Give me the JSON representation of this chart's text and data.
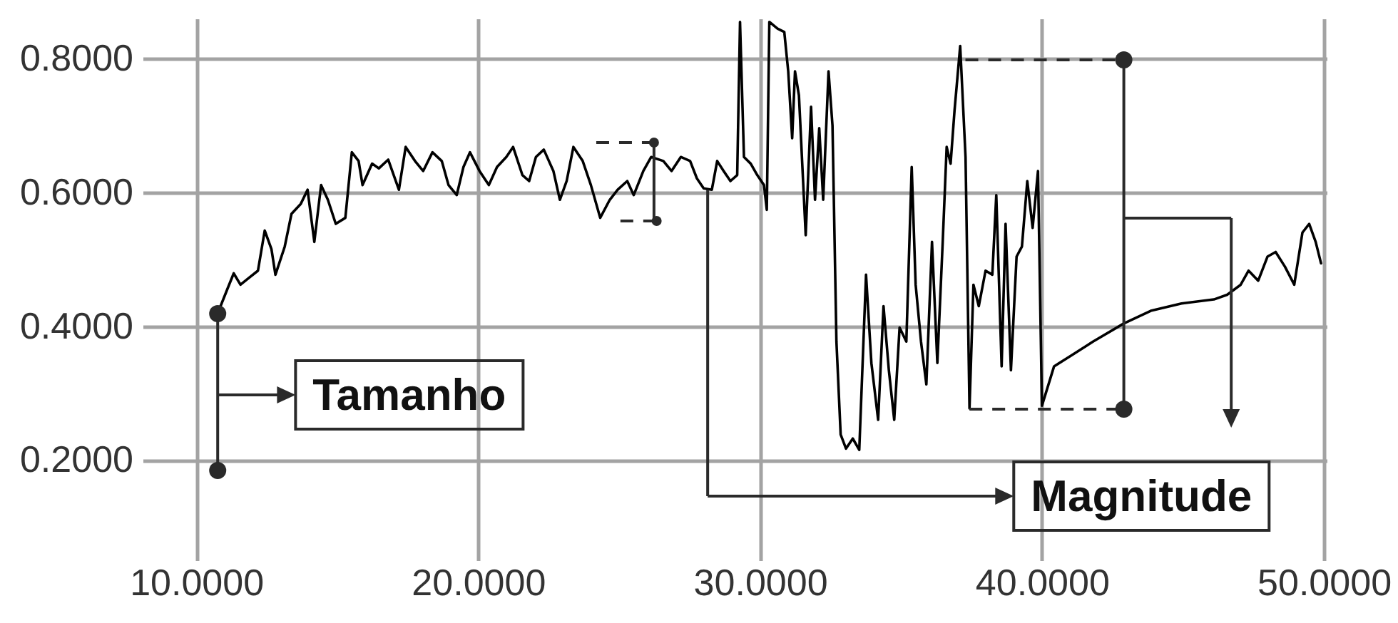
{
  "chart_data": {
    "type": "line",
    "x": [
      10.76,
      11.1,
      11.33,
      11.57,
      11.86,
      12.19,
      12.43,
      12.67,
      12.81,
      13.14,
      13.38,
      13.71,
      13.95,
      14.19,
      14.43,
      14.67,
      14.95,
      15.29,
      15.52,
      15.76,
      15.9,
      16.24,
      16.48,
      16.81,
      17.19,
      17.43,
      17.76,
      18.05,
      18.38,
      18.71,
      18.95,
      19.24,
      19.48,
      19.71,
      20.05,
      20.38,
      20.67,
      21.0,
      21.24,
      21.57,
      21.81,
      22.05,
      22.33,
      22.67,
      22.9,
      23.14,
      23.38,
      23.71,
      24.0,
      24.33,
      24.67,
      24.95,
      25.29,
      25.52,
      25.86,
      26.14,
      26.57,
      26.86,
      27.19,
      27.52,
      27.76,
      28.0,
      28.29,
      28.48,
      28.71,
      28.95,
      29.19,
      29.29,
      29.43,
      29.67,
      29.9,
      30.14,
      30.24,
      30.33,
      30.62,
      30.86,
      31.0,
      31.14,
      31.24,
      31.38,
      31.62,
      31.81,
      31.95,
      32.1,
      32.24,
      32.43,
      32.57,
      32.71,
      32.86,
      33.05,
      33.29,
      33.52,
      33.76,
      33.95,
      34.19,
      34.38,
      34.57,
      34.76,
      34.95,
      35.19,
      35.38,
      35.52,
      35.71,
      35.9,
      36.1,
      36.29,
      36.48,
      36.62,
      36.76,
      36.9,
      37.1,
      37.29,
      37.43,
      37.57,
      37.76,
      38.0,
      38.24,
      38.38,
      38.57,
      38.71,
      38.9,
      39.1,
      39.29,
      39.48,
      39.67,
      39.86,
      40.0,
      40.43,
      41.0,
      41.81,
      42.9,
      43.86,
      44.95,
      46.1,
      46.57,
      47.05,
      47.33,
      47.67,
      48.0,
      48.29,
      48.62,
      48.95,
      49.24,
      49.48,
      49.71,
      49.9
    ],
    "series": [
      {
        "color": "#000000",
        "values": [
          0.419,
          0.455,
          0.479,
          0.462,
          0.472,
          0.483,
          0.543,
          0.515,
          0.477,
          0.519,
          0.568,
          0.583,
          0.604,
          0.526,
          0.611,
          0.589,
          0.553,
          0.562,
          0.66,
          0.647,
          0.611,
          0.643,
          0.636,
          0.649,
          0.604,
          0.668,
          0.647,
          0.632,
          0.66,
          0.647,
          0.611,
          0.596,
          0.638,
          0.66,
          0.632,
          0.611,
          0.638,
          0.653,
          0.668,
          0.626,
          0.617,
          0.653,
          0.664,
          0.632,
          0.589,
          0.617,
          0.668,
          0.647,
          0.611,
          0.562,
          0.589,
          0.604,
          0.617,
          0.596,
          0.632,
          0.653,
          0.647,
          0.632,
          0.653,
          0.647,
          0.621,
          0.606,
          0.604,
          0.647,
          0.632,
          0.617,
          0.626,
          0.855,
          0.653,
          0.643,
          0.626,
          0.611,
          0.574,
          0.855,
          0.845,
          0.84,
          0.781,
          0.681,
          0.781,
          0.745,
          0.536,
          0.728,
          0.589,
          0.696,
          0.589,
          0.781,
          0.7,
          0.377,
          0.238,
          0.217,
          0.232,
          0.215,
          0.477,
          0.345,
          0.26,
          0.43,
          0.334,
          0.26,
          0.398,
          0.377,
          0.638,
          0.462,
          0.377,
          0.313,
          0.526,
          0.345,
          0.526,
          0.668,
          0.643,
          0.723,
          0.819,
          0.653,
          0.277,
          0.462,
          0.43,
          0.483,
          0.477,
          0.596,
          0.34,
          0.553,
          0.334,
          0.504,
          0.519,
          0.617,
          0.547,
          0.632,
          0.281,
          0.34,
          0.355,
          0.377,
          0.404,
          0.423,
          0.434,
          0.44,
          0.447,
          0.462,
          0.483,
          0.468,
          0.504,
          0.511,
          0.489,
          0.462,
          0.54,
          0.553,
          0.526,
          0.494
        ]
      }
    ],
    "xlim": [
      8.1,
      50.1
    ],
    "ylim": [
      0.05,
      0.86
    ],
    "xticks": [
      {
        "value": 10,
        "label": "10.0000"
      },
      {
        "value": 20,
        "label": "20.0000"
      },
      {
        "value": 30,
        "label": "30.0000"
      },
      {
        "value": 40,
        "label": "40.0000"
      },
      {
        "value": 50,
        "label": "50.0000"
      }
    ],
    "yticks": [
      {
        "value": 0.2,
        "label": "0.2000"
      },
      {
        "value": 0.4,
        "label": "0.4000"
      },
      {
        "value": 0.6,
        "label": "0.6000"
      },
      {
        "value": 0.8,
        "label": "0.8000"
      }
    ],
    "grid": true,
    "annotations": [
      "Tamanho",
      "Magnitude"
    ]
  }
}
